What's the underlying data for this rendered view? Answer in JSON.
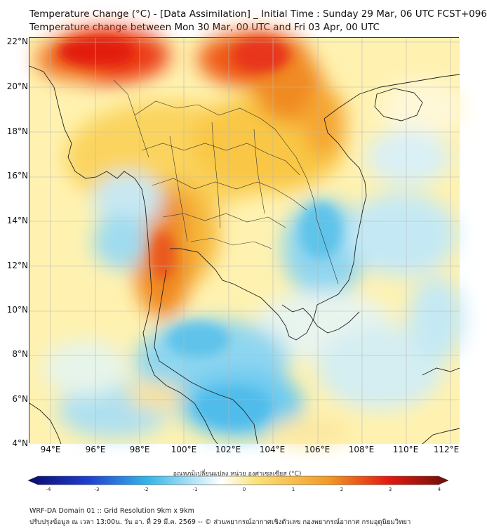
{
  "title_line1": "Temperature Change (°C) - [Data Assimilation] _ Initial Time : Sunday 29 Mar, 06 UTC FCST+096",
  "title_line2": "Temperature change between Mon 30 Mar, 00 UTC and Fri 03 Apr, 00 UTC",
  "lat_ticks": [
    "22°N",
    "20°N",
    "18°N",
    "16°N",
    "14°N",
    "12°N",
    "10°N",
    "8°N",
    "6°N",
    "4°N"
  ],
  "lon_ticks": [
    "94°E",
    "96°E",
    "98°E",
    "100°E",
    "102°E",
    "104°E",
    "106°E",
    "108°E",
    "110°E",
    "112°E"
  ],
  "colorbar": {
    "label": "อุณหภูมิเปลี่ยนแปลง หน่วย องศาเซลเซียส (°C)",
    "ticks": [
      "-4",
      "-3",
      "-2",
      "-1",
      "0",
      "1",
      "2",
      "3",
      "4"
    ],
    "colors": [
      "#0a0a6e",
      "#1f3fd0",
      "#35b7ea",
      "#ffffff",
      "#fbe37a",
      "#f39a23",
      "#e21a10",
      "#6e0f0a"
    ]
  },
  "footer_line1": "WRF-DA Domain 01 :: Grid Resolution 9km x 9km",
  "footer_line2": "ปรับปรุงข้อมูล ณ เวลา 13:00น. วัน อา. ที่ 29 มี.ค. 2569 -- © ส่วนพยากรณ์อากาศเชิงตัวเลข กองพยากรณ์อากาศ กรมอุตุนิยมวิทยา"
}
